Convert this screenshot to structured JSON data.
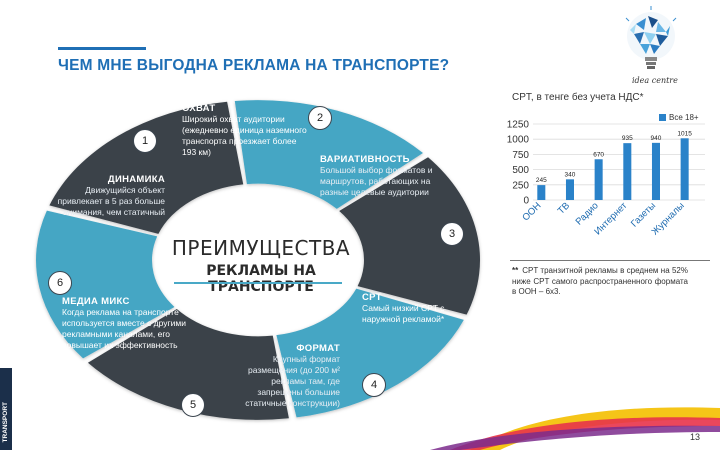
{
  "slide": {
    "title": "ЧЕМ МНЕ ВЫГОДНА РЕКЛАМА НА ТРАНСПОРТЕ?",
    "side_label": "TRANSPORT",
    "logo_text": "idea centre",
    "page_number": "13"
  },
  "infographic": {
    "center_title_1": "ПРЕИМУЩЕСТВА",
    "center_title_2": "РЕКЛАМЫ НА ТРАНСПОРТЕ",
    "segments": [
      {
        "number": "1",
        "heading": "ДИНАМИКА",
        "text": "Движущийся объект привлекает в 5 раз больше внимания, чем статичный"
      },
      {
        "number": "2",
        "heading": "ОХВАТ",
        "text": "Широкий охват аудитории (ежедневно единица наземного транспорта проезжает более 193 км)"
      },
      {
        "number": "3",
        "heading": "ВАРИАТИВНОСТЬ",
        "text": "Большой выбор форматов и маршрутов, работающих на разные целевые аудитории"
      },
      {
        "number": "4",
        "heading": "CPT",
        "text": "Самый низкий CPT с наружной рекламой*"
      },
      {
        "number": "5",
        "heading": "ФОРМАТ",
        "text": "Крупный формат размещения (до 200 м² рекламы там, где запрещены большие статичные конструкции)"
      },
      {
        "number": "6",
        "heading": "МЕДИА МИКС",
        "text": "Когда реклама на транспорте используется вместе с другими рекламными каналами, его повышает их эффективность"
      }
    ]
  },
  "chart_data": {
    "type": "bar",
    "title": "CPT, в тенге без учета НДС*",
    "legend": [
      "Все 18+"
    ],
    "legend_position": "top-right",
    "categories": [
      "ООН",
      "ТВ",
      "Радио",
      "Интернет",
      "Газеты",
      "Журналы"
    ],
    "series": [
      {
        "name": "Все 18+",
        "values": [
          245,
          340,
          670,
          935,
          940,
          1015
        ]
      }
    ],
    "yticks": [
      0,
      250,
      500,
      750,
      1000,
      1250
    ],
    "ylim": [
      0,
      1250
    ],
    "grid": true,
    "bar_color": "#2a82c9"
  },
  "footnote": {
    "mark": "**",
    "text": "CPT транзитной рекламы в среднем на 52% ниже CPT самого распространенного формата в ООН – 6x3."
  }
}
